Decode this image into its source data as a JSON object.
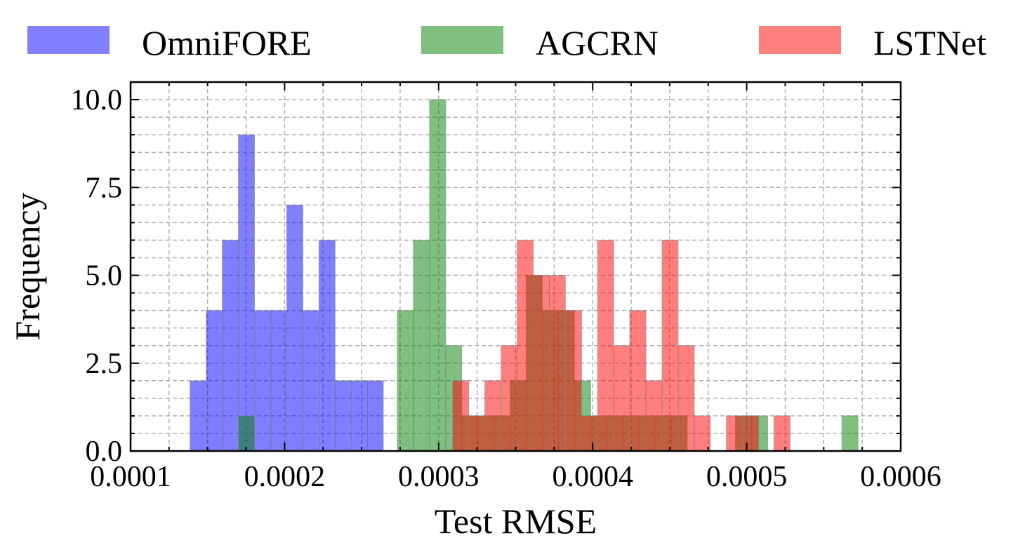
{
  "chart_data": {
    "type": "histogram",
    "xlabel": "Test RMSE",
    "ylabel": "Frequency",
    "xlim": [
      0.0001,
      0.0006
    ],
    "ylim": [
      0,
      10.5
    ],
    "bin_width": 1.05e-05,
    "grid": true,
    "legend_position": "top",
    "x_ticks": [
      {
        "value": 0.0001,
        "label": "0.0001"
      },
      {
        "value": 0.0002,
        "label": "0.0002"
      },
      {
        "value": 0.0003,
        "label": "0.0003"
      },
      {
        "value": 0.0004,
        "label": "0.0004"
      },
      {
        "value": 0.0005,
        "label": "0.0005"
      },
      {
        "value": 0.0006,
        "label": "0.0006"
      }
    ],
    "y_ticks": [
      {
        "value": 0,
        "label": "0.0"
      },
      {
        "value": 2.5,
        "label": "2.5"
      },
      {
        "value": 5,
        "label": "5.0"
      },
      {
        "value": 7.5,
        "label": "7.5"
      },
      {
        "value": 10,
        "label": "10.0"
      }
    ],
    "series": [
      {
        "name": "OmniFORE",
        "color": "#0000ff",
        "bins": [
          {
            "x": 0.0001386,
            "count": 2
          },
          {
            "x": 0.0001491,
            "count": 4
          },
          {
            "x": 0.0001595,
            "count": 6
          },
          {
            "x": 0.00017,
            "count": 9
          },
          {
            "x": 0.0001805,
            "count": 4
          },
          {
            "x": 0.0001909,
            "count": 4
          },
          {
            "x": 0.0002014,
            "count": 7
          },
          {
            "x": 0.0002118,
            "count": 4
          },
          {
            "x": 0.0002223,
            "count": 6
          },
          {
            "x": 0.0002327,
            "count": 2
          },
          {
            "x": 0.0002432,
            "count": 2
          },
          {
            "x": 0.0002536,
            "count": 2
          }
        ]
      },
      {
        "name": "AGCRN",
        "color": "#008000",
        "bins": [
          {
            "x": 0.00017,
            "count": 1
          },
          {
            "x": 0.0002732,
            "count": 4
          },
          {
            "x": 0.0002836,
            "count": 6
          },
          {
            "x": 0.0002941,
            "count": 10
          },
          {
            "x": 0.0003045,
            "count": 3
          },
          {
            "x": 0.000315,
            "count": 1
          },
          {
            "x": 0.0003255,
            "count": 1
          },
          {
            "x": 0.0003359,
            "count": 1
          },
          {
            "x": 0.0003464,
            "count": 2
          },
          {
            "x": 0.0003568,
            "count": 5
          },
          {
            "x": 0.0003673,
            "count": 4
          },
          {
            "x": 0.0003777,
            "count": 4
          },
          {
            "x": 0.0003882,
            "count": 2
          },
          {
            "x": 0.0003986,
            "count": 1
          },
          {
            "x": 0.0004091,
            "count": 1
          },
          {
            "x": 0.0004195,
            "count": 1
          },
          {
            "x": 0.00043,
            "count": 1
          },
          {
            "x": 0.0004405,
            "count": 1
          },
          {
            "x": 0.0004509,
            "count": 1
          },
          {
            "x": 0.0004927,
            "count": 1
          },
          {
            "x": 0.0005032,
            "count": 1
          },
          {
            "x": 0.0005618,
            "count": 1
          }
        ]
      },
      {
        "name": "LSTNet",
        "color": "#ff0000",
        "bins": [
          {
            "x": 0.0003091,
            "count": 2
          },
          {
            "x": 0.0003196,
            "count": 1
          },
          {
            "x": 0.00033,
            "count": 2
          },
          {
            "x": 0.0003405,
            "count": 3
          },
          {
            "x": 0.0003509,
            "count": 6
          },
          {
            "x": 0.0003614,
            "count": 5
          },
          {
            "x": 0.0003718,
            "count": 5
          },
          {
            "x": 0.0003823,
            "count": 4
          },
          {
            "x": 0.0003927,
            "count": 1
          },
          {
            "x": 0.0004032,
            "count": 6
          },
          {
            "x": 0.0004136,
            "count": 3
          },
          {
            "x": 0.0004241,
            "count": 4
          },
          {
            "x": 0.0004345,
            "count": 2
          },
          {
            "x": 0.000445,
            "count": 6
          },
          {
            "x": 0.0004555,
            "count": 3
          },
          {
            "x": 0.0004659,
            "count": 1
          },
          {
            "x": 0.0004868,
            "count": 1
          },
          {
            "x": 0.0004973,
            "count": 1
          },
          {
            "x": 0.0005177,
            "count": 1
          }
        ]
      }
    ]
  }
}
